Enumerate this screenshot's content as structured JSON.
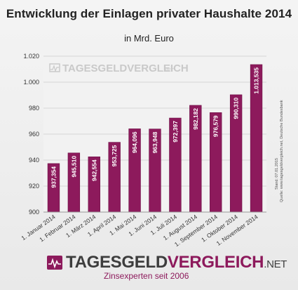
{
  "title": "Entwicklung der Einlagen privater Haushalte 2014",
  "subtitle": "in Mrd. Euro",
  "watermark": {
    "main": "TAGESGELDVERGLEICH",
    "suffix": ".NET"
  },
  "side_notes": {
    "source": "Quelle: www.tagesgeldvergleich.net, Deutsche Bundesbank",
    "date": "Stand: 07.01.2015"
  },
  "logo": {
    "part1": "TAGESGELD",
    "part2": "VERGLEICH",
    "part3": ".NET",
    "tagline": "Zinsexperten seit 2006",
    "icon": "heartbeat-chart-icon"
  },
  "colors": {
    "bar": "#8d1a5c",
    "bar_edge": "#6e1247",
    "grid": "#d6d6d6"
  },
  "chart_data": {
    "type": "bar",
    "title": "Entwicklung der Einlagen privater Haushalte 2014",
    "subtitle": "in Mrd. Euro",
    "categories": [
      "1. Januar 2014",
      "1. Februar 2014",
      "1. März 2014",
      "1. April 2014",
      "1. Mai 2014",
      "1. Juni 2014",
      "1. Juli 2014",
      "1. August 2014",
      "1. September 2014",
      "1. Oktober 2014",
      "1. November 2014"
    ],
    "values": [
      937.354,
      945.51,
      942.554,
      953.725,
      964.096,
      963.948,
      972.397,
      982.182,
      976.579,
      990.31,
      1013.535
    ],
    "value_labels": [
      "937,354",
      "945,510",
      "942,554",
      "953,725",
      "964,096",
      "963,948",
      "972,397",
      "982,182",
      "976,579",
      "990,310",
      "1.013,535"
    ],
    "yticks": [
      900,
      920,
      940,
      960,
      980,
      1000,
      1020
    ],
    "ytick_labels": [
      "900",
      "920",
      "940",
      "960",
      "980",
      "1.000",
      "1.020"
    ],
    "ylim": [
      900,
      1020
    ],
    "grid": true,
    "xlabel": "",
    "ylabel": ""
  }
}
